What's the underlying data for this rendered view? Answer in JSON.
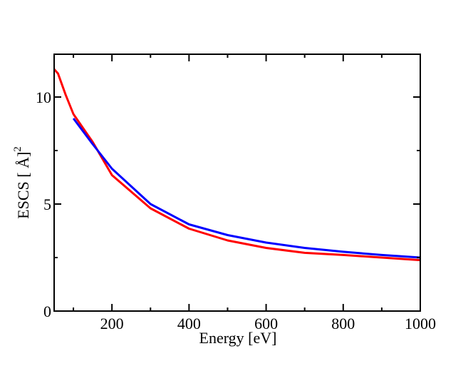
{
  "chart_data": {
    "type": "line",
    "title": "",
    "xlabel": "Energy [eV]",
    "ylabel": {
      "main": "ESCS [ Å]",
      "superscript": "2"
    },
    "xlim": [
      50,
      1000
    ],
    "ylim": [
      0,
      12
    ],
    "grid": false,
    "legend": "none",
    "x_ticks": [
      200,
      400,
      600,
      800,
      1000
    ],
    "x_tick_labels": [
      "200",
      "400",
      "600",
      "800",
      "1000"
    ],
    "y_ticks": [
      0,
      5,
      10
    ],
    "y_tick_labels": [
      "0",
      "5",
      "10"
    ],
    "series": [
      {
        "name": "red",
        "color": "#ff0000",
        "x": [
          50,
          60,
          70,
          80,
          100,
          150,
          200,
          300,
          400,
          500,
          600,
          700,
          800,
          900,
          1000
        ],
        "y": [
          11.3,
          11.1,
          10.6,
          10.1,
          9.2,
          7.9,
          6.35,
          4.8,
          3.85,
          3.3,
          2.95,
          2.72,
          2.62,
          2.5,
          2.38
        ]
      },
      {
        "name": "blue",
        "color": "#0000ff",
        "x": [
          100,
          150,
          200,
          300,
          400,
          500,
          600,
          700,
          800,
          900,
          1000
        ],
        "y": [
          9.0,
          7.8,
          6.65,
          5.0,
          4.05,
          3.55,
          3.2,
          2.95,
          2.77,
          2.62,
          2.5
        ]
      }
    ]
  }
}
